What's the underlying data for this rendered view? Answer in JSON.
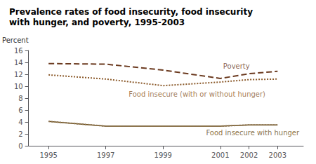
{
  "chart_data": {
    "type": "line",
    "title": "Prevalence rates of food insecurity, food insecurity\nwith hunger, and poverty, 1995-2003",
    "ylabel": "Percent",
    "x": [
      1995,
      1997,
      1999,
      2001,
      2002,
      2003
    ],
    "series": [
      {
        "color": "#6b3a1f",
        "line_style": "dashed",
        "values": [
          13.8,
          13.7,
          12.7,
          11.3,
          12.1,
          12.5
        ]
      },
      {
        "color": "#8b5a2b",
        "line_style": "dotted",
        "values": [
          11.9,
          11.2,
          10.1,
          10.7,
          11.1,
          11.2
        ]
      },
      {
        "color": "#6b4c11",
        "line_style": "solid",
        "values": [
          4.1,
          3.3,
          3.3,
          3.3,
          3.5,
          3.5
        ]
      },
      {
        "color": "#8b7355",
        "line_style": "dotted",
        "values": [
          4.1,
          3.3,
          3.3,
          3.3,
          3.5,
          3.5
        ]
      }
    ],
    "annotations": [
      {
        "text": "Poverty",
        "x": 2001.1,
        "y": 13.3,
        "color": "#6b3a1f"
      },
      {
        "text": "Food insecure (with or without hunger)",
        "x": 1997.8,
        "y": 8.7,
        "color": "#8b5a2b"
      },
      {
        "text": "Food insecure with hunger",
        "x": 2000.5,
        "y": 2.2,
        "color": "#6b4c11"
      }
    ],
    "xlim": [
      1994.3,
      2003.9
    ],
    "xticks": [
      1995,
      1997,
      1999,
      2001,
      2002,
      2003
    ],
    "ylim": [
      0,
      16
    ],
    "yticks": [
      0,
      2,
      4,
      6,
      8,
      10,
      12,
      14,
      16
    ],
    "grid": false
  }
}
